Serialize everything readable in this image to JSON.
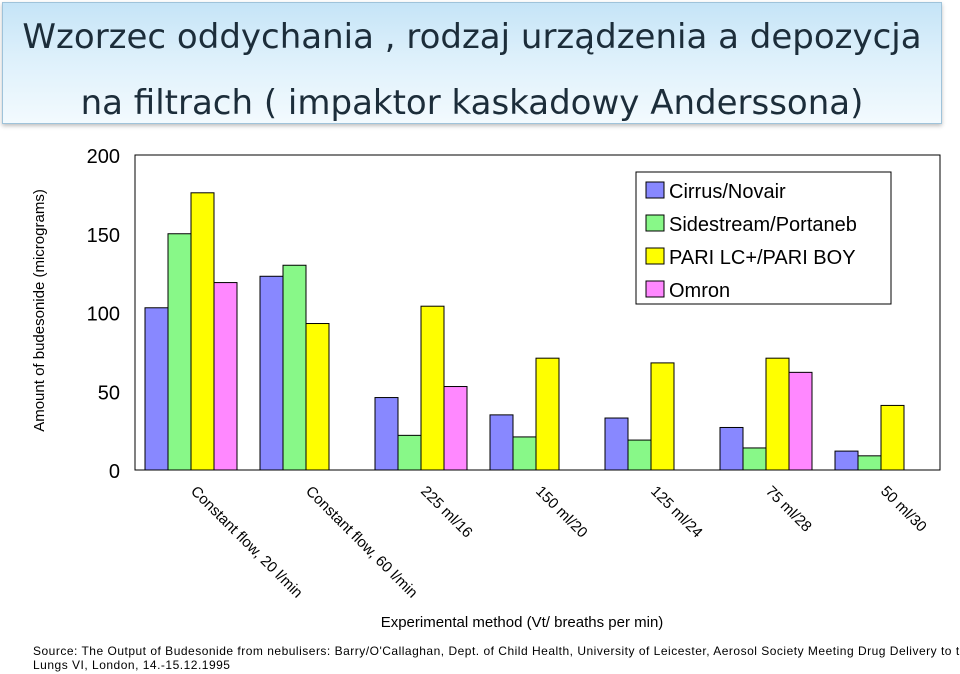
{
  "title": {
    "line1": "Wzorzec oddychania , rodzaj urządzenia a depozycja",
    "line2": "na filtrach ( impaktor kaskadowy Anderssona)"
  },
  "chart_data": {
    "type": "bar",
    "xlabel": "Experimental method (Vt/ breaths per min)",
    "ylabel": "Amount of budesonide (micrograms)",
    "ylim": [
      0,
      200
    ],
    "yticks": [
      "0",
      "50",
      "100",
      "150",
      "200"
    ],
    "grid": false,
    "legend_position": "top-right",
    "categories": [
      "Constant flow, 20 l/min",
      "Constant flow, 60 l/min",
      "225 ml/16",
      "150 ml/20",
      "125 ml/24",
      "75 ml/28",
      "50 ml/30"
    ],
    "series": [
      {
        "name": "Cirrus/Novair",
        "color": "#8888ff",
        "values": [
          103,
          123,
          46,
          35,
          33,
          27,
          12
        ]
      },
      {
        "name": "Sidestream/Portaneb",
        "color": "#88f888",
        "values": [
          150,
          130,
          22,
          21,
          19,
          14,
          9
        ]
      },
      {
        "name": "PARI LC+/PARI BOY",
        "color": "#ffff00",
        "values": [
          176,
          93,
          104,
          71,
          68,
          71,
          41
        ]
      },
      {
        "name": "Omron",
        "color": "#ff88ff",
        "values": [
          119,
          null,
          53,
          null,
          null,
          62,
          null
        ]
      }
    ]
  },
  "source": {
    "line1": "Source:  The Output of Budesonide from nebulisers:  Barry/O'Callaghan, Dept. of Child Health, University of Leicester, Aerosol Society Meeting Drug Delivery to the",
    "line2": "Lungs VI, London, 14.-15.12.1995"
  }
}
